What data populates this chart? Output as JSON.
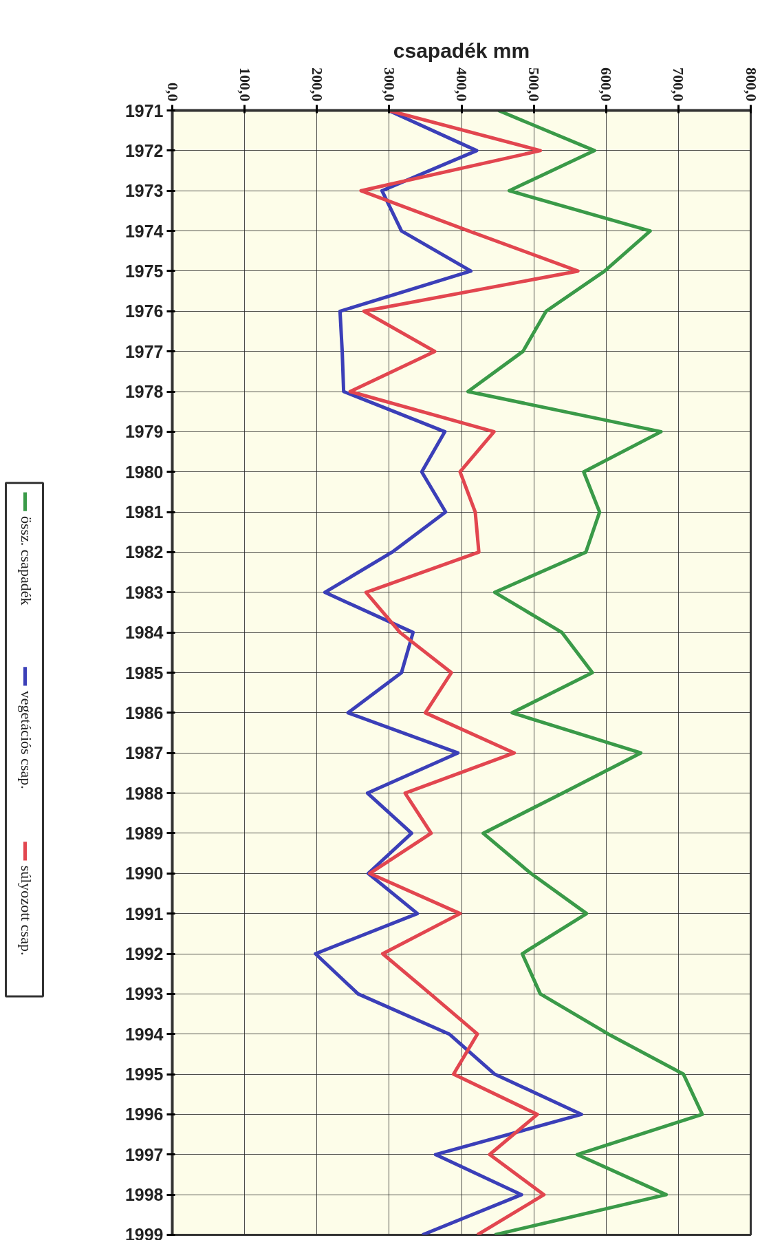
{
  "chart_data": {
    "type": "line",
    "xlabel": "csapadék mm",
    "orientation": "horizontal",
    "categories": [
      "1971",
      "1972",
      "1973",
      "1974",
      "1975",
      "1976",
      "1977",
      "1978",
      "1979",
      "1980",
      "1981",
      "1982",
      "1983",
      "1984",
      "1985",
      "1986",
      "1987",
      "1988",
      "1989",
      "1990",
      "1991",
      "1992",
      "1993",
      "1994",
      "1995",
      "1996",
      "1997",
      "1998",
      "1999"
    ],
    "series": [
      {
        "name": "össz. csapadék",
        "color": "#3a9a48",
        "values": [
          451,
          584,
          466,
          661,
          598,
          517,
          485,
          409,
          676,
          569,
          591,
          572,
          446,
          539,
          581,
          470,
          648,
          540,
          430,
          496,
          573,
          484,
          509,
          603,
          707,
          733,
          560,
          683,
          446
        ]
      },
      {
        "name": "vegetációs csap.",
        "color": "#3b3fb8",
        "values": [
          299,
          421,
          290,
          317,
          413,
          232,
          235,
          237,
          377,
          345,
          378,
          304,
          211,
          333,
          317,
          243,
          395,
          270,
          331,
          271,
          339,
          198,
          257,
          383,
          446,
          566,
          364,
          483,
          346
        ]
      },
      {
        "name": "súlyozott csap.",
        "color": "#e2464f",
        "values": [
          299,
          509,
          261,
          410,
          561,
          265,
          363,
          246,
          445,
          398,
          419,
          424,
          268,
          315,
          386,
          350,
          473,
          322,
          358,
          273,
          398,
          291,
          357,
          422,
          389,
          505,
          439,
          514,
          422
        ]
      }
    ],
    "xlim": [
      0,
      800
    ],
    "xticks": [
      {
        "value": 0,
        "label": "0,0"
      },
      {
        "value": 100,
        "label": "100,0"
      },
      {
        "value": 200,
        "label": "200,0"
      },
      {
        "value": 300,
        "label": "300,0"
      },
      {
        "value": 400,
        "label": "400,0"
      },
      {
        "value": 500,
        "label": "500,0"
      },
      {
        "value": 600,
        "label": "600,0"
      },
      {
        "value": 700,
        "label": "700,0"
      },
      {
        "value": 800,
        "label": "800,0"
      }
    ],
    "grid": true,
    "legend": "left",
    "marker": "none",
    "line_style": "solid"
  }
}
